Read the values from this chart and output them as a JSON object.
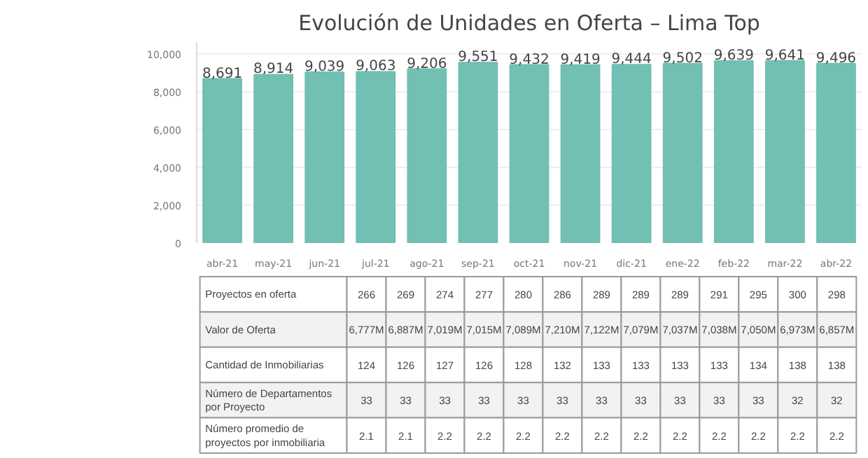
{
  "chart_data": [
    {
      "type": "bar",
      "title": "Evolución de Unidades en Oferta – Lima Top",
      "categories": [
        "abr-21",
        "may-21",
        "jun-21",
        "jul-21",
        "ago-21",
        "sep-21",
        "oct-21",
        "nov-21",
        "dic-21",
        "ene-22",
        "feb-22",
        "mar-22",
        "abr-22"
      ],
      "values": [
        8691,
        8914,
        9039,
        9063,
        9206,
        9551,
        9432,
        9419,
        9444,
        9502,
        9639,
        9641,
        9496
      ],
      "value_labels": [
        "8,691",
        "8,914",
        "9,039",
        "9,063",
        "9,206",
        "9,551",
        "9,432",
        "9,419",
        "9,444",
        "9,502",
        "9,639",
        "9,641",
        "9,496"
      ],
      "color": "#72bfb4",
      "ylim": [
        0,
        10600
      ],
      "yticks": [
        {
          "value": 0,
          "label": "0"
        },
        {
          "value": 2000,
          "label": "2,000"
        },
        {
          "value": 4000,
          "label": "4,000"
        },
        {
          "value": 6000,
          "label": "6,000"
        },
        {
          "value": 8000,
          "label": "8,000"
        },
        {
          "value": 10000,
          "label": "10,000"
        }
      ],
      "grid": "y"
    },
    {
      "type": "other",
      "categories": [
        null,
        null,
        null,
        null,
        null,
        null,
        null,
        null,
        null,
        null,
        null,
        null,
        null
      ],
      "annotations": [
        "Proyectos en oferta",
        "266",
        "269",
        "274",
        "277",
        "280",
        "286",
        "289",
        "289",
        "289",
        "291",
        "295",
        "300",
        "298",
        "Valor de Oferta",
        "6,777M",
        "6,887M",
        "7,019M",
        "7,015M",
        "7,089M",
        "7,210M",
        "7,122M",
        "7,079M",
        "7,037M",
        "7,038M",
        "7,050M",
        "6,973M",
        "6,857M",
        "Cantidad de Inmobiliarias",
        "124",
        "126",
        "127",
        "126",
        "128",
        "132",
        "133",
        "133",
        "133",
        "133",
        "134",
        "138",
        "138",
        "Número de Departamentos por Proyecto",
        "33",
        "33",
        "33",
        "33",
        "33",
        "33",
        "33",
        "33",
        "33",
        "33",
        "33",
        "32",
        "32",
        "Número promedio de proyectos por inmobiliaria",
        "2.1",
        "2.1",
        "2.2",
        "2.2",
        "2.2",
        "2.2",
        "2.2",
        "2.2",
        "2.2",
        "2.2",
        "2.2",
        "2.2",
        "2.2"
      ]
    }
  ]
}
